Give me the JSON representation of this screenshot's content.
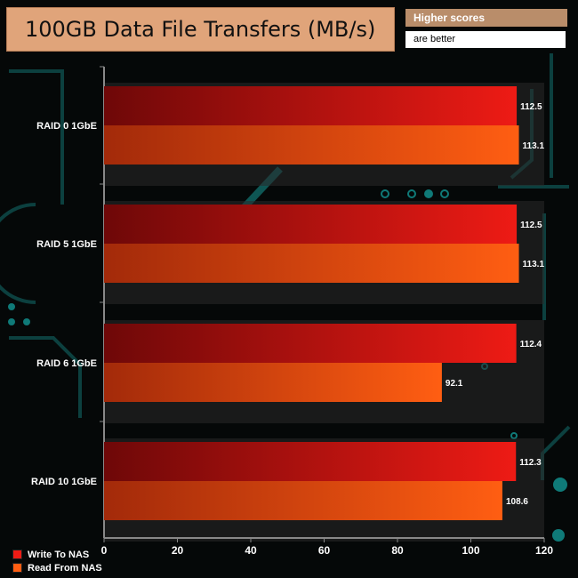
{
  "header": {
    "title": "100GB Data File Transfers (MB/s)",
    "note_line1": "Higher scores",
    "note_line2": "are better"
  },
  "colors": {
    "write": "#ee1b15",
    "read": "#ff5e12",
    "accent": "#0f7a78"
  },
  "chart_data": {
    "type": "bar",
    "orientation": "horizontal",
    "title": "100GB Data File Transfers (MB/s)",
    "categories": [
      "RAID 0 1GbE",
      "RAID 5 1GbE",
      "RAID 6 1GbE",
      "RAID 10 1GbE"
    ],
    "series": [
      {
        "name": "Write To NAS",
        "values": [
          112.5,
          112.5,
          112.4,
          112.3
        ]
      },
      {
        "name": "Read From NAS",
        "values": [
          113.1,
          113.1,
          92.1,
          108.6
        ]
      }
    ],
    "xlim": [
      0,
      120
    ],
    "xticks": [
      0,
      20,
      40,
      60,
      80,
      100,
      120
    ],
    "legend": "bottom-left",
    "grid": false
  }
}
